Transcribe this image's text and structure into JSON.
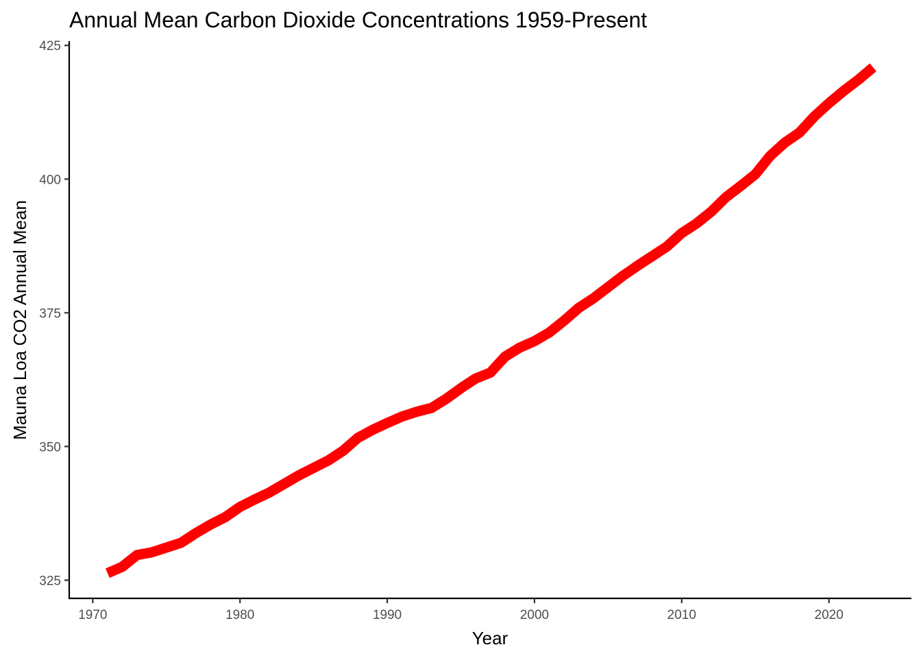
{
  "chart_data": {
    "type": "line",
    "title": "Annual Mean Carbon Dioxide Concentrations 1959-Present",
    "xlabel": "Year",
    "ylabel": "Mauna Loa CO2 Annual Mean",
    "xlim": [
      1968.4,
      2025.6
    ],
    "ylim": [
      321.6,
      425.8
    ],
    "x_ticks": [
      1970,
      1980,
      1990,
      2000,
      2010,
      2020
    ],
    "y_ticks": [
      325,
      350,
      375,
      400,
      425
    ],
    "grid": false,
    "legend": "none",
    "series_color": "#ff0000",
    "series": [
      {
        "x": [
          1971,
          1972,
          1973,
          1974,
          1975,
          1976,
          1977,
          1978,
          1979,
          1980,
          1981,
          1982,
          1983,
          1984,
          1985,
          1986,
          1987,
          1988,
          1989,
          1990,
          1991,
          1992,
          1993,
          1994,
          1995,
          1996,
          1997,
          1998,
          1999,
          2000,
          2001,
          2002,
          2003,
          2004,
          2005,
          2006,
          2007,
          2008,
          2009,
          2010,
          2011,
          2012,
          2013,
          2014,
          2015,
          2016,
          2017,
          2018,
          2019,
          2020,
          2021,
          2022,
          2023
        ],
        "values": [
          326.3,
          327.5,
          329.7,
          330.2,
          331.1,
          332.0,
          333.8,
          335.4,
          336.8,
          338.7,
          340.1,
          341.4,
          343.0,
          344.6,
          346.0,
          347.4,
          349.2,
          351.6,
          353.1,
          354.4,
          355.6,
          356.5,
          357.2,
          358.9,
          360.9,
          362.7,
          363.8,
          366.8,
          368.5,
          369.7,
          371.3,
          373.5,
          375.9,
          377.7,
          379.8,
          381.9,
          383.8,
          385.6,
          387.4,
          389.9,
          391.7,
          393.9,
          396.6,
          398.7,
          400.9,
          404.3,
          406.8,
          408.7,
          411.7,
          414.2,
          416.5,
          418.6,
          420.9
        ]
      }
    ]
  }
}
